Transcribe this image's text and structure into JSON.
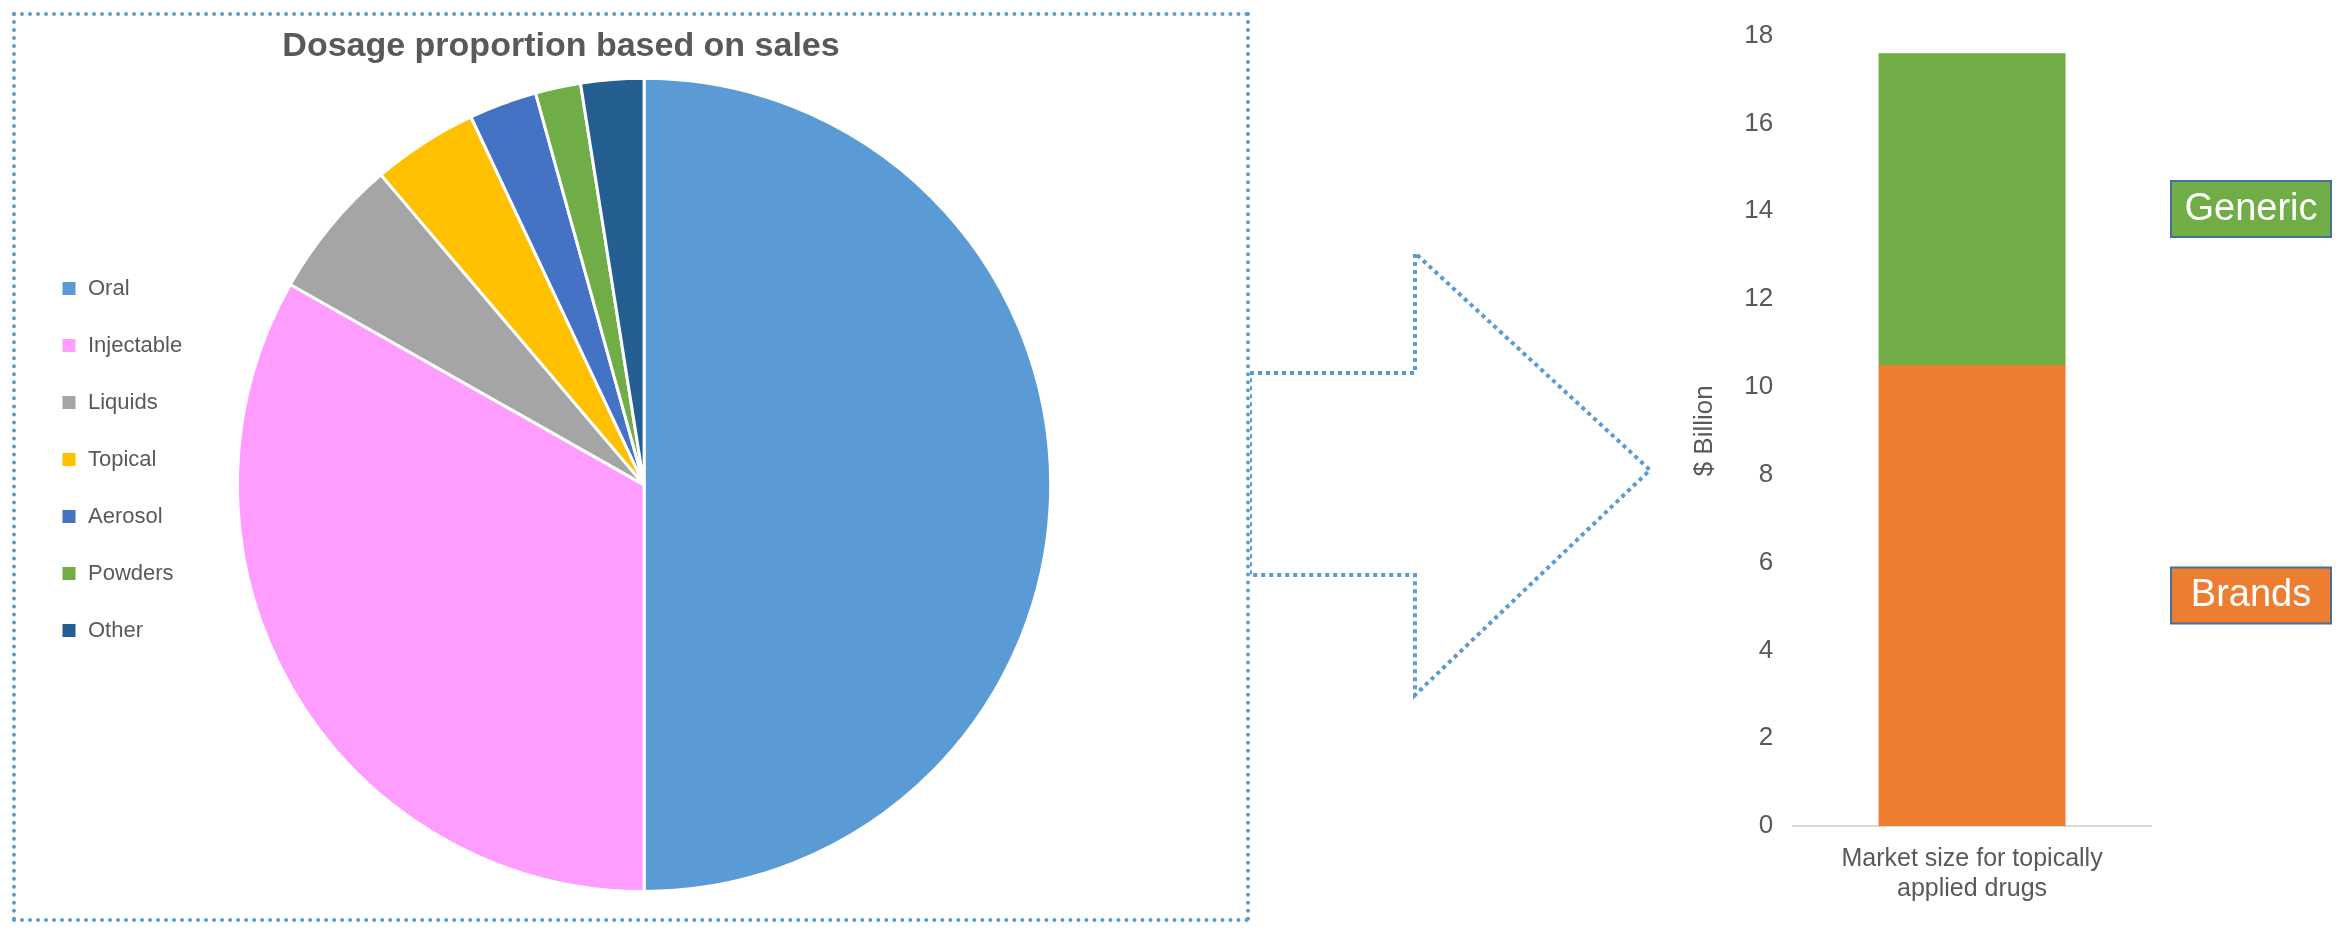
{
  "chart_data": [
    {
      "type": "pie",
      "title": "Dosage proportion based on sales",
      "categories": [
        "Oral",
        "Injectable",
        "Liquids",
        "Topical",
        "Aerosol",
        "Powders",
        "Other"
      ],
      "values": [
        50,
        33.2,
        5.6,
        4.2,
        2.7,
        1.8,
        2.5
      ],
      "colors": [
        "#5b9bd5",
        "#ff9cff",
        "#a5a5a5",
        "#ffc000",
        "#4472c4",
        "#70ad47",
        "#255e91"
      ],
      "legend": "left"
    },
    {
      "type": "bar",
      "stacked": true,
      "categories": [
        "Market size for topically applied drugs"
      ],
      "ylabel": "$ Billion",
      "ylim": [
        0,
        18
      ],
      "yticks": [
        0,
        2,
        4,
        6,
        8,
        10,
        12,
        14,
        16,
        18
      ],
      "grid": false,
      "legend": "right",
      "series": [
        {
          "name": "Brands",
          "color": "#ed7d31",
          "values": [
            10.5
          ]
        },
        {
          "name": "Generic",
          "color": "#70ad47",
          "values": [
            7.1
          ]
        }
      ]
    }
  ]
}
